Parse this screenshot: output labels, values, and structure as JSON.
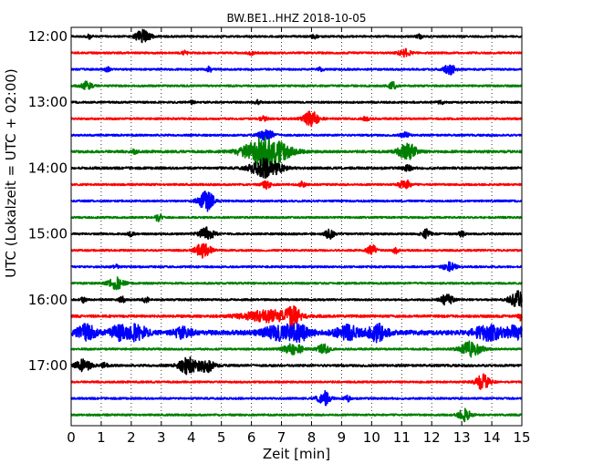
{
  "chart_data": {
    "type": "line",
    "title": "BW.BE1..HHZ 2018-10-05",
    "xlabel": "Zeit  [min]",
    "ylabel": "UTC (Lokalzeit = UTC + 02:00)",
    "xlim": [
      0,
      15
    ],
    "x_ticks": [
      "0",
      "1",
      "2",
      "3",
      "4",
      "5",
      "6",
      "7",
      "8",
      "9",
      "10",
      "11",
      "12",
      "13",
      "14",
      "15"
    ],
    "y_ticks": [
      {
        "label": "12:00",
        "row": 0
      },
      {
        "label": "13:00",
        "row": 4
      },
      {
        "label": "14:00",
        "row": 8
      },
      {
        "label": "15:00",
        "row": 12
      },
      {
        "label": "16:00",
        "row": 16
      },
      {
        "label": "17:00",
        "row": 20
      }
    ],
    "row_interval_min": 15,
    "grid": true,
    "colors": [
      "#000000",
      "#ff0000",
      "#0000ff",
      "#008000"
    ],
    "series": [
      {
        "start": "12:00",
        "color": "#000000",
        "noise": 1.0,
        "events": [
          [
            2.4,
            7,
            0.25
          ],
          [
            0.6,
            2,
            0.1
          ],
          [
            8.1,
            2,
            0.1
          ],
          [
            11.6,
            2,
            0.1
          ]
        ]
      },
      {
        "start": "12:15",
        "color": "#ff0000",
        "noise": 1.0,
        "events": [
          [
            11.1,
            4,
            0.2
          ],
          [
            3.8,
            2,
            0.1
          ],
          [
            6.0,
            2,
            0.1
          ]
        ]
      },
      {
        "start": "12:30",
        "color": "#0000ff",
        "noise": 1.0,
        "events": [
          [
            12.6,
            5,
            0.2
          ],
          [
            1.2,
            3,
            0.08
          ],
          [
            4.6,
            3,
            0.08
          ],
          [
            8.3,
            2,
            0.1
          ]
        ]
      },
      {
        "start": "12:45",
        "color": "#008000",
        "noise": 1.0,
        "events": [
          [
            0.5,
            4,
            0.2
          ],
          [
            10.7,
            4,
            0.12
          ]
        ]
      },
      {
        "start": "13:00",
        "color": "#000000",
        "noise": 1.0,
        "events": [
          [
            4.0,
            2,
            0.1
          ],
          [
            6.2,
            2,
            0.1
          ],
          [
            12.3,
            2,
            0.1
          ]
        ]
      },
      {
        "start": "13:15",
        "color": "#ff0000",
        "noise": 1.0,
        "events": [
          [
            8.0,
            8,
            0.25
          ],
          [
            9.8,
            3,
            0.1
          ],
          [
            6.4,
            3,
            0.12
          ]
        ]
      },
      {
        "start": "13:30",
        "color": "#0000ff",
        "noise": 1.0,
        "events": [
          [
            6.5,
            6,
            0.25
          ],
          [
            11.1,
            3,
            0.15
          ]
        ]
      },
      {
        "start": "13:45",
        "color": "#008000",
        "noise": 1.3,
        "events": [
          [
            6.5,
            17,
            0.7
          ],
          [
            11.2,
            9,
            0.3
          ],
          [
            2.1,
            2,
            0.1
          ]
        ]
      },
      {
        "start": "14:00",
        "color": "#000000",
        "noise": 1.2,
        "events": [
          [
            6.5,
            10,
            0.5
          ],
          [
            11.2,
            3,
            0.15
          ]
        ]
      },
      {
        "start": "14:15",
        "color": "#ff0000",
        "noise": 1.0,
        "events": [
          [
            11.1,
            5,
            0.2
          ],
          [
            6.5,
            4,
            0.15
          ],
          [
            7.7,
            3,
            0.1
          ]
        ]
      },
      {
        "start": "14:30",
        "color": "#0000ff",
        "noise": 1.0,
        "events": [
          [
            4.5,
            11,
            0.25
          ]
        ]
      },
      {
        "start": "14:45",
        "color": "#008000",
        "noise": 1.0,
        "events": [
          [
            2.9,
            4,
            0.1
          ]
        ]
      },
      {
        "start": "15:00",
        "color": "#000000",
        "noise": 1.0,
        "events": [
          [
            4.5,
            7,
            0.25
          ],
          [
            8.6,
            5,
            0.15
          ],
          [
            11.8,
            5,
            0.15
          ],
          [
            2.0,
            3,
            0.1
          ],
          [
            13.0,
            3,
            0.1
          ]
        ]
      },
      {
        "start": "15:15",
        "color": "#ff0000",
        "noise": 1.0,
        "events": [
          [
            4.4,
            8,
            0.25
          ],
          [
            10.0,
            6,
            0.15
          ],
          [
            10.8,
            3,
            0.1
          ]
        ]
      },
      {
        "start": "15:30",
        "color": "#0000ff",
        "noise": 1.0,
        "events": [
          [
            12.6,
            5,
            0.2
          ],
          [
            1.5,
            2,
            0.1
          ]
        ]
      },
      {
        "start": "15:45",
        "color": "#008000",
        "noise": 1.0,
        "events": [
          [
            1.5,
            6,
            0.25
          ]
        ]
      },
      {
        "start": "16:00",
        "color": "#000000",
        "noise": 1.0,
        "events": [
          [
            12.5,
            6,
            0.2
          ],
          [
            14.9,
            9,
            0.3
          ],
          [
            0.4,
            3,
            0.1
          ],
          [
            1.7,
            3,
            0.1
          ],
          [
            2.5,
            3,
            0.1
          ]
        ]
      },
      {
        "start": "16:15",
        "color": "#ff0000",
        "noise": 1.3,
        "events": [
          [
            6.6,
            6,
            0.9
          ],
          [
            7.4,
            10,
            0.2
          ],
          [
            15.0,
            5,
            0.1
          ]
        ]
      },
      {
        "start": "16:30",
        "color": "#0000ff",
        "noise": 2.5,
        "events": [
          [
            0.5,
            8,
            0.3
          ],
          [
            1.6,
            7,
            0.3
          ],
          [
            2.2,
            8,
            0.3
          ],
          [
            3.7,
            5,
            0.3
          ],
          [
            6.9,
            7,
            0.5
          ],
          [
            7.6,
            7,
            0.4
          ],
          [
            9.2,
            7,
            0.4
          ],
          [
            10.2,
            9,
            0.3
          ],
          [
            13.9,
            7,
            0.5
          ],
          [
            14.8,
            6,
            0.3
          ]
        ]
      },
      {
        "start": "16:45",
        "color": "#008000",
        "noise": 1.0,
        "events": [
          [
            7.4,
            6,
            0.3
          ],
          [
            8.4,
            5,
            0.2
          ],
          [
            13.3,
            8,
            0.35
          ]
        ]
      },
      {
        "start": "17:00",
        "color": "#000000",
        "noise": 1.2,
        "events": [
          [
            0.4,
            6,
            0.25
          ],
          [
            3.9,
            9,
            0.3
          ],
          [
            4.5,
            7,
            0.25
          ],
          [
            1.1,
            3,
            0.1
          ]
        ]
      },
      {
        "start": "17:15",
        "color": "#ff0000",
        "noise": 1.0,
        "events": [
          [
            13.7,
            8,
            0.25
          ]
        ]
      },
      {
        "start": "17:30",
        "color": "#0000ff",
        "noise": 1.0,
        "events": [
          [
            8.4,
            8,
            0.2
          ],
          [
            9.2,
            3,
            0.1
          ]
        ]
      },
      {
        "start": "17:45",
        "color": "#008000",
        "noise": 1.0,
        "events": [
          [
            13.1,
            7,
            0.2
          ]
        ]
      }
    ]
  }
}
